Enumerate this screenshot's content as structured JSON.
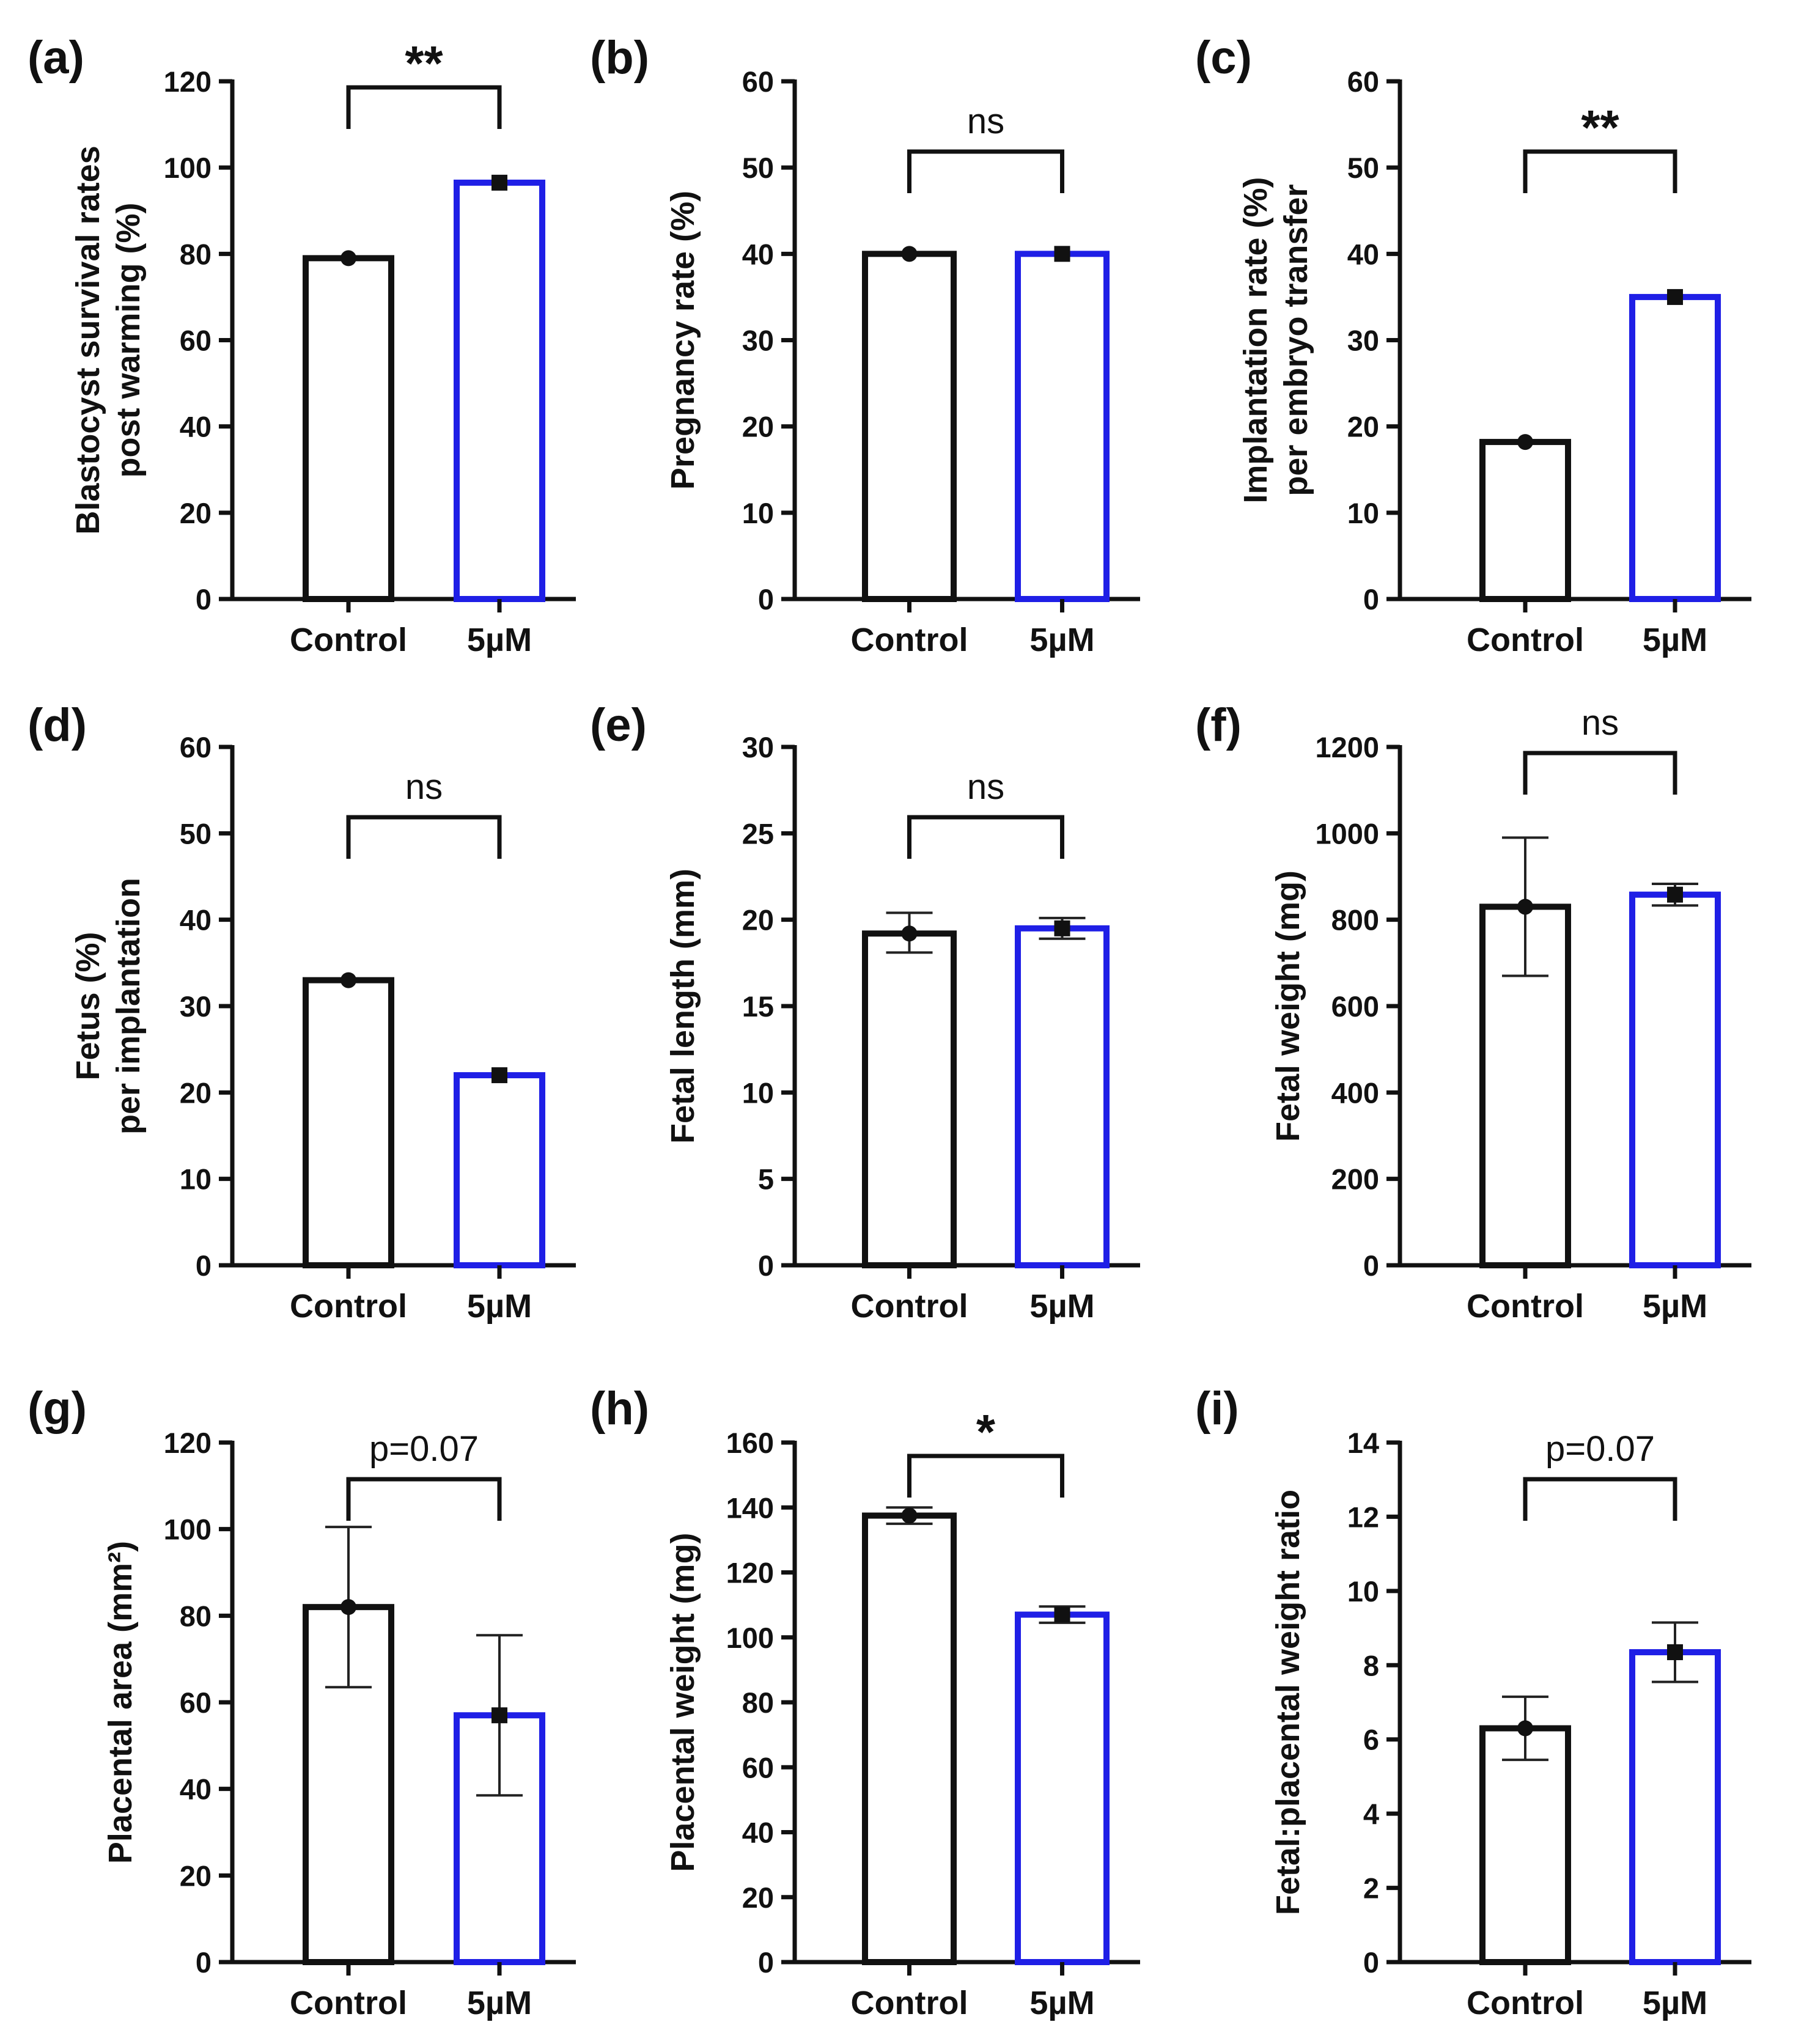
{
  "figure": {
    "colors": {
      "control": "#111111",
      "treatment": "#1f1fe6",
      "axis": "#111111"
    },
    "chart_data": [
      {
        "panel_label": "(a)",
        "type": "bar",
        "ylabel_lines": [
          "Blastocyst survival rates",
          "post warming (%)"
        ],
        "ylim": [
          0,
          120
        ],
        "yticks": [
          0,
          20,
          40,
          60,
          80,
          100,
          120
        ],
        "categories": [
          "Control",
          "5µM"
        ],
        "values": [
          79,
          96.5
        ],
        "errors": [
          [
            0,
            0
          ],
          [
            0,
            0
          ]
        ],
        "significance": "**"
      },
      {
        "panel_label": "(b)",
        "type": "bar",
        "ylabel_lines": [
          "Pregnancy rate (%)"
        ],
        "ylim": [
          0,
          60
        ],
        "yticks": [
          0,
          10,
          20,
          30,
          40,
          50,
          60
        ],
        "categories": [
          "Control",
          "5µM"
        ],
        "values": [
          40,
          40
        ],
        "errors": [
          [
            0,
            0
          ],
          [
            0,
            0
          ]
        ],
        "significance": "ns"
      },
      {
        "panel_label": "(c)",
        "type": "bar",
        "ylabel_lines": [
          "Implantation rate (%)",
          "per embryo transfer"
        ],
        "ylim": [
          0,
          60
        ],
        "yticks": [
          0,
          10,
          20,
          30,
          40,
          50,
          60
        ],
        "categories": [
          "Control",
          "5µM"
        ],
        "values": [
          18.2,
          35
        ],
        "errors": [
          [
            0,
            0
          ],
          [
            0,
            0
          ]
        ],
        "significance": "**"
      },
      {
        "panel_label": "(d)",
        "type": "bar",
        "ylabel_lines": [
          "Fetus (%)",
          "per implantation"
        ],
        "ylim": [
          0,
          60
        ],
        "yticks": [
          0,
          10,
          20,
          30,
          40,
          50,
          60
        ],
        "categories": [
          "Control",
          "5µM"
        ],
        "values": [
          33,
          22
        ],
        "errors": [
          [
            0,
            0
          ],
          [
            0,
            0
          ]
        ],
        "significance": "ns"
      },
      {
        "panel_label": "(e)",
        "type": "bar",
        "ylabel_lines": [
          "Fetal length (mm)"
        ],
        "ylim": [
          0,
          30
        ],
        "yticks": [
          0,
          5,
          10,
          15,
          20,
          25,
          30
        ],
        "categories": [
          "Control",
          "5µM"
        ],
        "values": [
          19.2,
          19.5
        ],
        "errors": [
          [
            1.1,
            1.2
          ],
          [
            0.6,
            0.6
          ]
        ],
        "significance": "ns"
      },
      {
        "panel_label": "(f)",
        "type": "bar",
        "ylabel_lines": [
          "Fetal weight (mg)"
        ],
        "ylim": [
          0,
          1200
        ],
        "yticks": [
          0,
          200,
          400,
          600,
          800,
          1000,
          1200
        ],
        "categories": [
          "Control",
          "5µM"
        ],
        "values": [
          830,
          858
        ],
        "errors": [
          [
            160,
            160
          ],
          [
            25,
            25
          ]
        ],
        "significance": "ns"
      },
      {
        "panel_label": "(g)",
        "type": "bar",
        "ylabel_lines": [
          "Placental area (mm²)"
        ],
        "ylim": [
          0,
          120
        ],
        "yticks": [
          0,
          20,
          40,
          60,
          80,
          100,
          120
        ],
        "categories": [
          "Control",
          "5µM"
        ],
        "values": [
          82,
          57
        ],
        "errors": [
          [
            18.5,
            18.5
          ],
          [
            18.5,
            18.5
          ]
        ],
        "significance": "p=0.07"
      },
      {
        "panel_label": "(h)",
        "type": "bar",
        "ylabel_lines": [
          "Placental weight (mg)"
        ],
        "ylim": [
          0,
          160
        ],
        "yticks": [
          0,
          20,
          40,
          60,
          80,
          100,
          120,
          140,
          160
        ],
        "categories": [
          "Control",
          "5µM"
        ],
        "values": [
          137.5,
          107
        ],
        "errors": [
          [
            2.5,
            2.5
          ],
          [
            2.5,
            2.5
          ]
        ],
        "significance": "*"
      },
      {
        "panel_label": "(i)",
        "type": "bar",
        "ylabel_lines": [
          "Fetal:placental weight ratio"
        ],
        "ylim": [
          0,
          14
        ],
        "yticks": [
          0,
          2,
          4,
          6,
          8,
          10,
          12,
          14
        ],
        "categories": [
          "Control",
          "5µM"
        ],
        "values": [
          6.3,
          8.35
        ],
        "errors": [
          [
            0.85,
            0.85
          ],
          [
            0.8,
            0.8
          ]
        ],
        "significance": "p=0.07"
      }
    ]
  }
}
